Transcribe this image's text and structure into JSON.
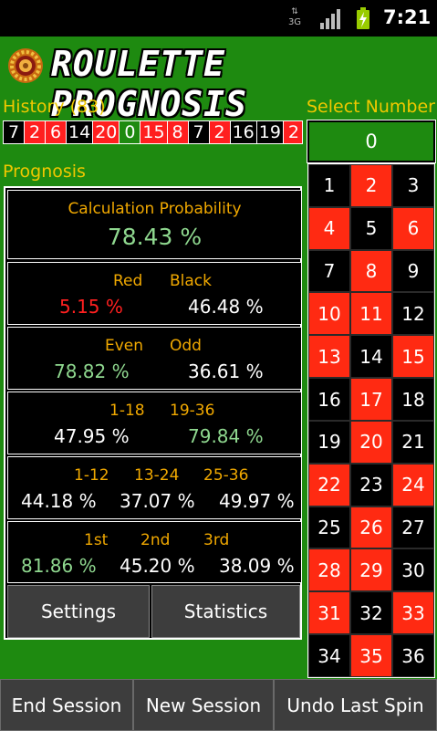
{
  "status_bar": {
    "network": "3G",
    "time": "7:21",
    "icons": [
      "network-3g-icon",
      "signal-icon",
      "battery-charging-icon"
    ]
  },
  "app": {
    "title": "ROULETTE PROGNOSIS",
    "logo": "roulette-wheel-icon"
  },
  "history": {
    "label": "History (83)",
    "items": [
      {
        "n": "7",
        "color": "black"
      },
      {
        "n": "2",
        "color": "red"
      },
      {
        "n": "6",
        "color": "red"
      },
      {
        "n": "14",
        "color": "black"
      },
      {
        "n": "20",
        "color": "red"
      },
      {
        "n": "0",
        "color": "green"
      },
      {
        "n": "15",
        "color": "red"
      },
      {
        "n": "8",
        "color": "red"
      },
      {
        "n": "7",
        "color": "black"
      },
      {
        "n": "2",
        "color": "red"
      },
      {
        "n": "16",
        "color": "black"
      },
      {
        "n": "19",
        "color": "black"
      },
      {
        "n": "2",
        "color": "red"
      }
    ]
  },
  "prognosis": {
    "label": "Prognosis",
    "calc": {
      "label": "Calculation Probability",
      "value": "78.43 %"
    },
    "red_black": {
      "red_label": "Red",
      "black_label": "Black",
      "red_value": "5.15 %",
      "black_value": "46.48 %"
    },
    "even_odd": {
      "even_label": "Even",
      "odd_label": "Odd",
      "even_value": "78.82 %",
      "odd_value": "36.61 %"
    },
    "halves": {
      "low_label": "1-18",
      "high_label": "19-36",
      "low_value": "47.95 %",
      "high_value": "79.84 %"
    },
    "dozens": {
      "d1_label": "1-12",
      "d2_label": "13-24",
      "d3_label": "25-36",
      "d1_value": "44.18 %",
      "d2_value": "37.07 %",
      "d3_value": "49.97 %"
    },
    "columns": {
      "c1_label": "1st",
      "c2_label": "2nd",
      "c3_label": "3rd",
      "c1_value": "81.86 %",
      "c2_value": "45.20 %",
      "c3_value": "38.09 %"
    },
    "settings_label": "Settings",
    "statistics_label": "Statistics"
  },
  "select": {
    "label": "Select Number",
    "zero": "0",
    "numbers": [
      {
        "n": "1",
        "color": "black"
      },
      {
        "n": "2",
        "color": "red"
      },
      {
        "n": "3",
        "color": "black"
      },
      {
        "n": "4",
        "color": "red"
      },
      {
        "n": "5",
        "color": "black"
      },
      {
        "n": "6",
        "color": "red"
      },
      {
        "n": "7",
        "color": "black"
      },
      {
        "n": "8",
        "color": "red"
      },
      {
        "n": "9",
        "color": "black"
      },
      {
        "n": "10",
        "color": "red"
      },
      {
        "n": "11",
        "color": "red"
      },
      {
        "n": "12",
        "color": "black"
      },
      {
        "n": "13",
        "color": "red"
      },
      {
        "n": "14",
        "color": "black"
      },
      {
        "n": "15",
        "color": "red"
      },
      {
        "n": "16",
        "color": "black"
      },
      {
        "n": "17",
        "color": "red"
      },
      {
        "n": "18",
        "color": "black"
      },
      {
        "n": "19",
        "color": "black"
      },
      {
        "n": "20",
        "color": "red"
      },
      {
        "n": "21",
        "color": "black"
      },
      {
        "n": "22",
        "color": "red"
      },
      {
        "n": "23",
        "color": "black"
      },
      {
        "n": "24",
        "color": "red"
      },
      {
        "n": "25",
        "color": "black"
      },
      {
        "n": "26",
        "color": "red"
      },
      {
        "n": "27",
        "color": "black"
      },
      {
        "n": "28",
        "color": "red"
      },
      {
        "n": "29",
        "color": "red"
      },
      {
        "n": "30",
        "color": "black"
      },
      {
        "n": "31",
        "color": "red"
      },
      {
        "n": "32",
        "color": "black"
      },
      {
        "n": "33",
        "color": "red"
      },
      {
        "n": "34",
        "color": "black"
      },
      {
        "n": "35",
        "color": "red"
      },
      {
        "n": "36",
        "color": "black"
      }
    ]
  },
  "bottom": {
    "end_label": "End Session",
    "new_label": "New Session",
    "undo_label": "Undo Last Spin"
  },
  "colors": {
    "background": "#1e8a10",
    "red": "#ff2a12",
    "label_yellow": "#f0c800",
    "label_orange": "#f0a800",
    "value_green": "#8fd88f"
  }
}
